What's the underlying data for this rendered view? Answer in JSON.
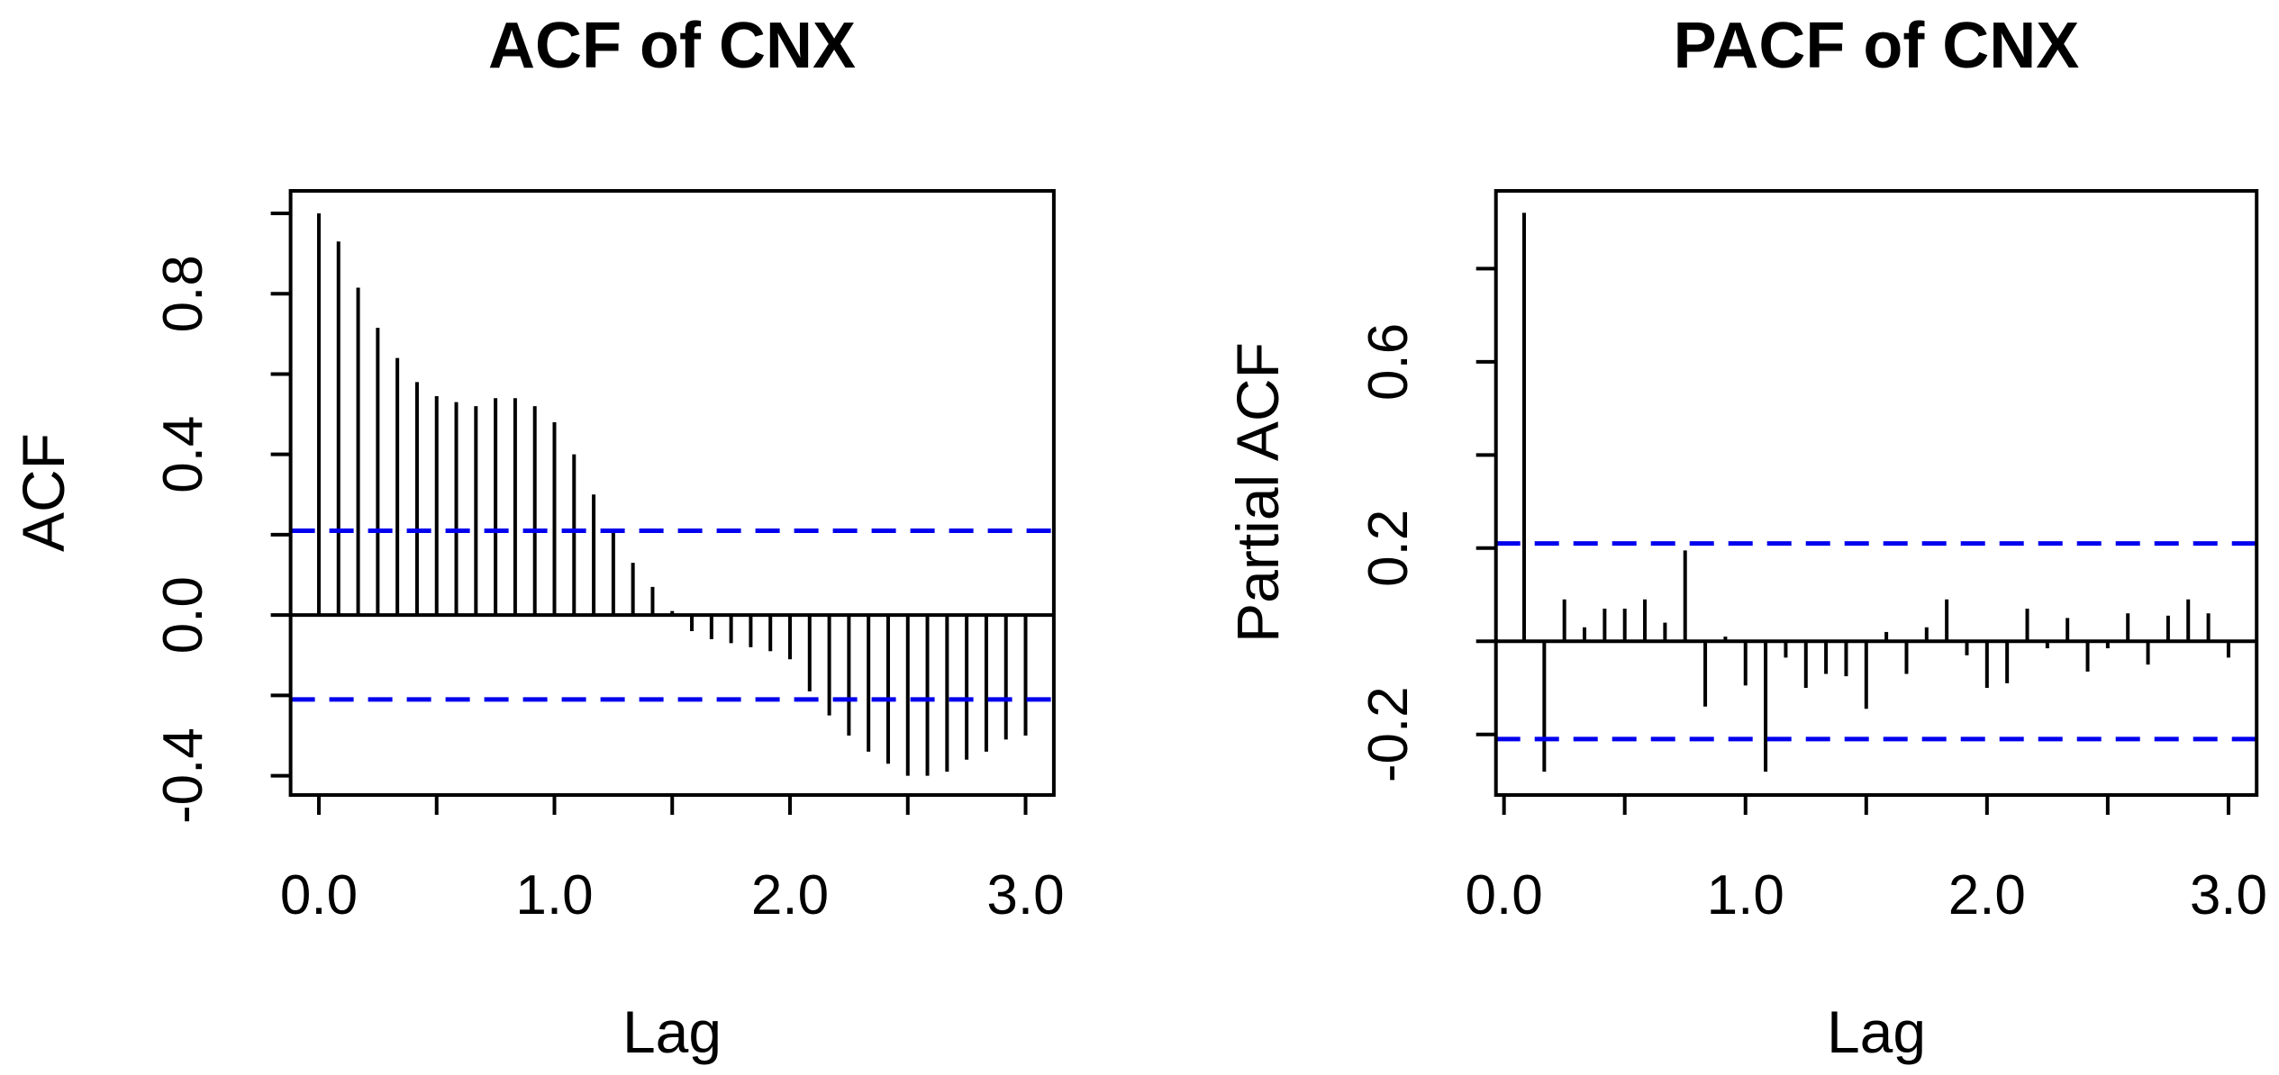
{
  "chart_data": [
    {
      "type": "bar",
      "subtype": "acf-stick-plot",
      "title": "ACF of CNX",
      "xlabel": "Lag",
      "ylabel": "ACF",
      "x": [
        0,
        0.0833,
        0.1667,
        0.25,
        0.3333,
        0.4167,
        0.5,
        0.5833,
        0.6667,
        0.75,
        0.8333,
        0.9167,
        1.0,
        1.0833,
        1.1667,
        1.25,
        1.3333,
        1.4167,
        1.5,
        1.5833,
        1.6667,
        1.75,
        1.8333,
        1.9167,
        2.0,
        2.0833,
        2.1667,
        2.25,
        2.3333,
        2.4167,
        2.5,
        2.5833,
        2.6667,
        2.75,
        2.8333,
        2.9167,
        3.0
      ],
      "values": [
        1.0,
        0.93,
        0.815,
        0.715,
        0.64,
        0.58,
        0.545,
        0.53,
        0.52,
        0.54,
        0.54,
        0.52,
        0.48,
        0.4,
        0.3,
        0.21,
        0.13,
        0.07,
        0.01,
        -0.04,
        -0.06,
        -0.07,
        -0.08,
        -0.09,
        -0.11,
        -0.19,
        -0.25,
        -0.3,
        -0.34,
        -0.37,
        -0.4,
        -0.4,
        -0.39,
        -0.36,
        -0.34,
        -0.31,
        -0.3
      ],
      "xlim": [
        -0.12,
        3.12
      ],
      "ylim": [
        -0.448,
        1.056
      ],
      "xticks": [
        {
          "v": 0.0,
          "label": "0.0"
        },
        {
          "v": 0.5,
          "label": ""
        },
        {
          "v": 1.0,
          "label": "1.0"
        },
        {
          "v": 1.5,
          "label": ""
        },
        {
          "v": 2.0,
          "label": "2.0"
        },
        {
          "v": 2.5,
          "label": ""
        },
        {
          "v": 3.0,
          "label": "3.0"
        }
      ],
      "yticks": [
        {
          "v": 1.0,
          "label": ""
        },
        {
          "v": 0.8,
          "label": "0.8"
        },
        {
          "v": 0.6,
          "label": ""
        },
        {
          "v": 0.4,
          "label": "0.4"
        },
        {
          "v": 0.2,
          "label": ""
        },
        {
          "v": 0.0,
          "label": "0.0"
        },
        {
          "v": -0.2,
          "label": ""
        },
        {
          "v": -0.4,
          "label": "-0.4"
        }
      ],
      "conf_level": 0.21,
      "conf_line_style": "dashed",
      "conf_color": "#0000ee",
      "bar_color": "#000000",
      "zero_line": true,
      "grid": false,
      "legend": null
    },
    {
      "type": "bar",
      "subtype": "pacf-stick-plot",
      "title": "PACF of CNX",
      "xlabel": "Lag",
      "ylabel": "Partial ACF",
      "x": [
        0.0833,
        0.1667,
        0.25,
        0.3333,
        0.4167,
        0.5,
        0.5833,
        0.6667,
        0.75,
        0.8333,
        0.9167,
        1.0,
        1.0833,
        1.1667,
        1.25,
        1.3333,
        1.4167,
        1.5,
        1.5833,
        1.6667,
        1.75,
        1.8333,
        1.9167,
        2.0,
        2.0833,
        2.1667,
        2.25,
        2.3333,
        2.4167,
        2.5,
        2.5833,
        2.6667,
        2.75,
        2.8333,
        2.9167,
        3.0
      ],
      "values": [
        0.92,
        -0.28,
        0.09,
        0.03,
        0.07,
        0.07,
        0.09,
        0.04,
        0.195,
        -0.14,
        0.01,
        -0.095,
        -0.28,
        -0.035,
        -0.1,
        -0.07,
        -0.075,
        -0.145,
        0.02,
        -0.07,
        0.03,
        0.09,
        -0.03,
        -0.1,
        -0.09,
        0.07,
        -0.015,
        0.05,
        -0.065,
        -0.015,
        0.06,
        -0.05,
        0.055,
        0.09,
        0.06,
        -0.035
      ],
      "xlim": [
        -0.0334,
        3.1167
      ],
      "ylim": [
        -0.33,
        0.967
      ],
      "xticks": [
        {
          "v": 0.0,
          "label": "0.0"
        },
        {
          "v": 0.5,
          "label": ""
        },
        {
          "v": 1.0,
          "label": "1.0"
        },
        {
          "v": 1.5,
          "label": ""
        },
        {
          "v": 2.0,
          "label": "2.0"
        },
        {
          "v": 2.5,
          "label": ""
        },
        {
          "v": 3.0,
          "label": "3.0"
        }
      ],
      "yticks": [
        {
          "v": 0.8,
          "label": ""
        },
        {
          "v": 0.6,
          "label": "0.6"
        },
        {
          "v": 0.4,
          "label": ""
        },
        {
          "v": 0.2,
          "label": "0.2"
        },
        {
          "v": 0.0,
          "label": ""
        },
        {
          "v": -0.2,
          "label": "-0.2"
        }
      ],
      "conf_level": 0.21,
      "conf_line_style": "dashed",
      "conf_color": "#0000ee",
      "bar_color": "#000000",
      "zero_line": true,
      "grid": false,
      "legend": null
    }
  ]
}
